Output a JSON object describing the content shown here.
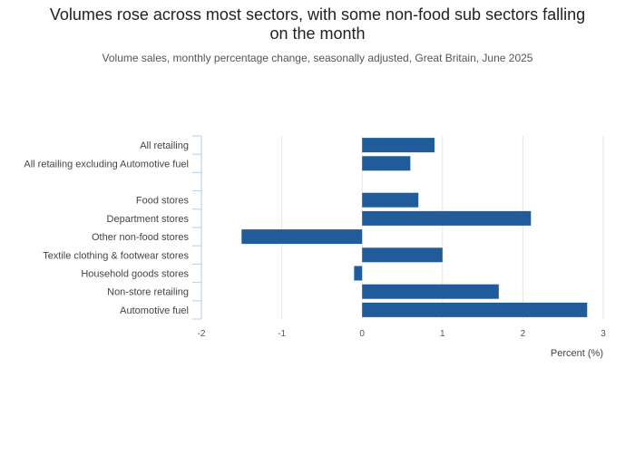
{
  "title_line1": "Volumes rose across most sectors, with some non-food sub sectors falling",
  "title_line2": "on the month",
  "subtitle": "Volume sales, monthly percentage change, seasonally adjusted, Great Britain, June 2025",
  "colors": {
    "bar": "#1f5c99",
    "grid": "#e6e6e6",
    "axis_tick": "#b8cfe6"
  },
  "chart_data": {
    "type": "bar",
    "orientation": "horizontal",
    "categories": [
      "All retailing",
      "All retailing excluding Automotive fuel",
      "",
      "Food stores",
      "Department stores",
      "Other non-food stores",
      "Textile clothing & footwear stores",
      "Household goods stores",
      "Non-store retailing",
      "Automotive fuel"
    ],
    "values": [
      0.9,
      0.6,
      null,
      0.7,
      2.1,
      -1.5,
      1.0,
      -0.1,
      1.7,
      2.8
    ],
    "xlim": [
      -2,
      3
    ],
    "xticks": [
      "-2",
      "-1",
      "0",
      "1",
      "2",
      "3"
    ],
    "xlabel": "Percent (%)",
    "ylabel": "",
    "grid": true
  }
}
